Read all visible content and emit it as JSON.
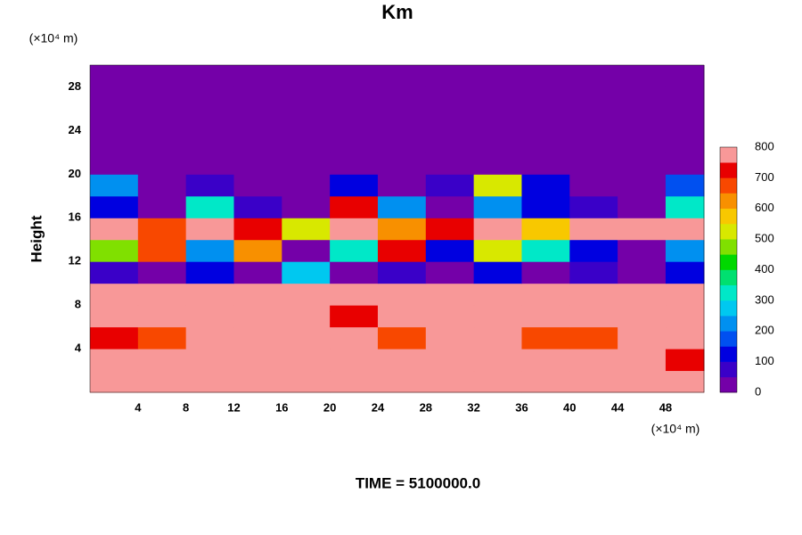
{
  "chart_data": {
    "type": "heatmap",
    "title": "Km",
    "xlabel": "(×10⁴ m)",
    "ylabel": "Height",
    "yunit": "(×10⁴ m)",
    "footer": "TIME = 5100000.0",
    "x": [
      2,
      6,
      10,
      14,
      18,
      22,
      26,
      30,
      34,
      38,
      42,
      46,
      50
    ],
    "y": [
      1,
      3,
      5,
      7,
      9,
      11,
      13,
      15,
      17,
      19,
      21,
      23,
      25,
      27,
      29
    ],
    "z": [
      [
        800,
        800,
        800,
        800,
        800,
        800,
        800,
        800,
        800,
        800,
        800,
        800,
        800
      ],
      [
        750,
        800,
        800,
        800,
        800,
        800,
        800,
        800,
        800,
        800,
        800,
        800,
        700
      ],
      [
        700,
        650,
        800,
        800,
        750,
        800,
        650,
        800,
        800,
        650,
        650,
        800,
        800
      ],
      [
        800,
        800,
        800,
        800,
        800,
        700,
        800,
        800,
        800,
        800,
        800,
        750,
        800
      ],
      [
        800,
        800,
        800,
        800,
        800,
        800,
        800,
        800,
        800,
        800,
        800,
        800,
        800
      ],
      [
        50,
        0,
        100,
        0,
        250,
        0,
        50,
        0,
        100,
        0,
        50,
        0,
        100
      ],
      [
        450,
        650,
        200,
        600,
        0,
        300,
        700,
        100,
        500,
        300,
        100,
        0,
        200
      ],
      [
        800,
        650,
        800,
        700,
        500,
        800,
        600,
        700,
        800,
        550,
        800,
        750,
        800
      ],
      [
        100,
        0,
        300,
        50,
        0,
        700,
        200,
        0,
        200,
        100,
        50,
        0,
        300
      ],
      [
        200,
        0,
        50,
        0,
        0,
        100,
        0,
        50,
        500,
        100,
        0,
        0,
        150
      ],
      [
        0,
        0,
        0,
        0,
        0,
        0,
        0,
        0,
        0,
        0,
        0,
        0,
        0
      ],
      [
        0,
        0,
        0,
        0,
        0,
        0,
        0,
        0,
        0,
        0,
        0,
        0,
        0
      ],
      [
        0,
        0,
        0,
        0,
        0,
        0,
        0,
        0,
        0,
        0,
        0,
        0,
        0
      ],
      [
        0,
        0,
        0,
        0,
        0,
        0,
        0,
        0,
        0,
        0,
        0,
        0,
        0
      ],
      [
        0,
        0,
        0,
        0,
        0,
        0,
        0,
        0,
        0,
        0,
        0,
        0,
        0
      ]
    ],
    "xlim": [
      0,
      51.2
    ],
    "ylim": [
      0,
      30
    ],
    "xticks": [
      4,
      8,
      12,
      16,
      20,
      24,
      28,
      32,
      36,
      40,
      44,
      48
    ],
    "yticks": [
      4,
      8,
      12,
      16,
      20,
      24,
      28
    ],
    "levels": [
      0,
      50,
      100,
      150,
      200,
      250,
      300,
      350,
      400,
      450,
      500,
      550,
      600,
      650,
      700,
      750,
      800
    ],
    "colors": [
      "#7400a8",
      "#3a00c8",
      "#0000e0",
      "#0050f0",
      "#0090f0",
      "#00c8f0",
      "#00e8c8",
      "#00e070",
      "#00d800",
      "#80e000",
      "#d8e800",
      "#f8c800",
      "#f89000",
      "#f84800",
      "#e80000",
      "#f89898"
    ],
    "colorbar_ticks": [
      0,
      100,
      200,
      300,
      400,
      500,
      600,
      700,
      800
    ]
  }
}
